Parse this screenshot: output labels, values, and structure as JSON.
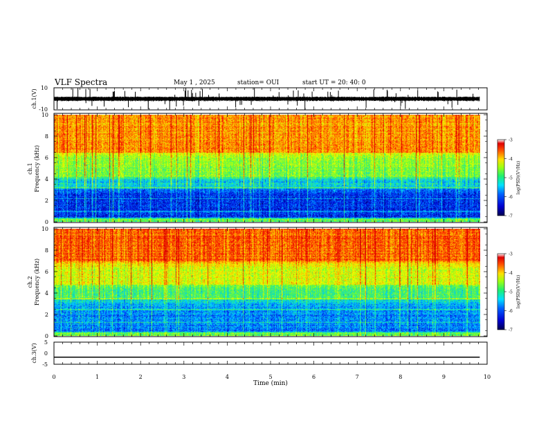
{
  "header": {
    "title": "VLF Spectra",
    "date": "May 1 , 2025",
    "station": "station= OUI",
    "start_time": "start UT =  20: 40: 0"
  },
  "chart_data": [
    {
      "type": "line",
      "ylabel": "ch.1(V)",
      "ylim": [
        -10,
        10
      ],
      "yticks": [
        10,
        -10
      ],
      "xlim": [
        0,
        10
      ],
      "baseline": 0,
      "series": [
        {
          "values": "dense broadband waveform, mostly within about ±3 V with spikes toward ±10 V"
        }
      ]
    },
    {
      "type": "heatmap",
      "ylabel": "ch.1 Frequency (kHz)",
      "ylim": [
        0,
        10
      ],
      "yticks": [
        0,
        2,
        4,
        6,
        8,
        10
      ],
      "xlim": [
        0,
        10
      ],
      "colorbar": {
        "label": "log(PSD) (V²/Hz)",
        "range": [
          -7,
          -3
        ],
        "ticks": [
          -3,
          -4,
          -5,
          -6,
          -7
        ]
      },
      "bands": [
        {
          "freq_kHz": [
            0,
            0.4
          ],
          "level": -4.9
        },
        {
          "freq_kHz": [
            0.4,
            3.2
          ],
          "level": -6.3
        },
        {
          "freq_kHz": [
            3.2,
            4.2
          ],
          "level": -5.5
        },
        {
          "freq_kHz": [
            4.2,
            6.5
          ],
          "level": -4.8
        },
        {
          "freq_kHz": [
            6.5,
            10
          ],
          "level": -3.8
        }
      ]
    },
    {
      "type": "heatmap",
      "ylabel": "ch.2 Frequency (kHz)",
      "ylim": [
        0,
        10
      ],
      "yticks": [
        0,
        2,
        4,
        6,
        8,
        10
      ],
      "xlim": [
        0,
        10
      ],
      "colorbar": {
        "label": "log(PSD) (V²/Hz)",
        "range": [
          -7,
          -3
        ],
        "ticks": [
          -3,
          -4,
          -5,
          -6,
          -7
        ]
      },
      "bands": [
        {
          "freq_kHz": [
            0,
            0.4
          ],
          "level": -4.9
        },
        {
          "freq_kHz": [
            0.4,
            3.4
          ],
          "level": -5.9
        },
        {
          "freq_kHz": [
            3.4,
            4.8
          ],
          "level": -5.1
        },
        {
          "freq_kHz": [
            4.8,
            7.0
          ],
          "level": -4.4
        },
        {
          "freq_kHz": [
            7.0,
            10
          ],
          "level": -3.6
        }
      ]
    },
    {
      "type": "line",
      "ylabel": "ch.3(V)",
      "ylim": [
        -5,
        5
      ],
      "yticks": [
        5,
        0,
        -5
      ],
      "xlim": [
        0,
        10
      ],
      "series": [
        {
          "values": [
            -1.8,
            -1.8
          ]
        }
      ]
    }
  ],
  "xaxis": {
    "label": "Time (min)",
    "ticks": [
      0,
      1,
      2,
      3,
      4,
      5,
      6,
      7,
      8,
      9,
      10
    ],
    "data_end_min": 9.83
  },
  "colorscale": [
    "#00004a",
    "#0000c8",
    "#0050ff",
    "#00d0ff",
    "#20e890",
    "#80ff20",
    "#f0ff00",
    "#ffb000",
    "#ff2a00",
    "#d80000"
  ]
}
